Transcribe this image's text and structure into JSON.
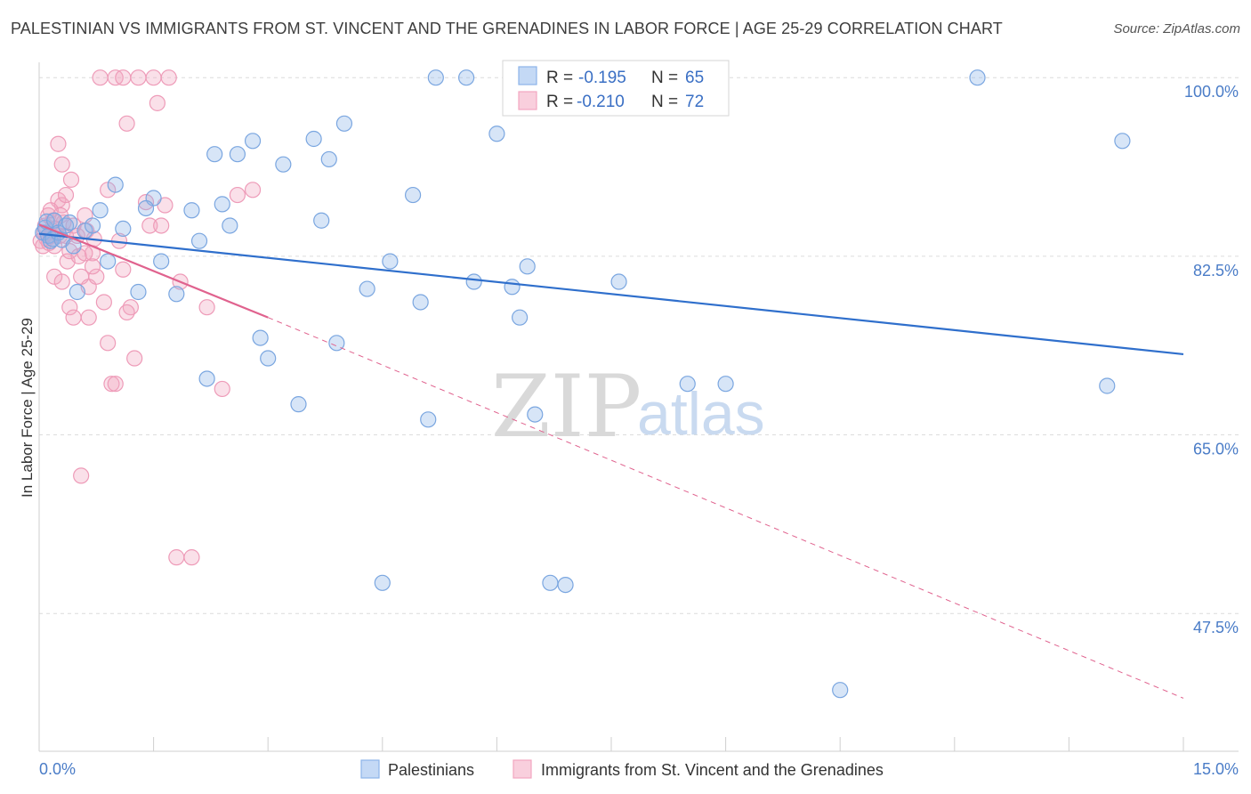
{
  "header": {
    "title": "PALESTINIAN VS IMMIGRANTS FROM ST. VINCENT AND THE GRENADINES IN LABOR FORCE | AGE 25-29 CORRELATION CHART",
    "source": "Source: ZipAtlas.com"
  },
  "watermark": {
    "zip": "ZIP",
    "atlas": "atlas"
  },
  "stats": [
    {
      "r_label": "R =",
      "r_value": "-0.195",
      "n_label": "N =",
      "n_value": "65"
    },
    {
      "r_label": "R =",
      "r_value": "-0.210",
      "n_label": "N =",
      "n_value": "72"
    }
  ],
  "legend": [
    {
      "label": "Palestinians"
    },
    {
      "label": "Immigrants from St. Vincent and the Grenadines"
    }
  ],
  "chart_data": {
    "type": "scatter",
    "title": "PALESTINIAN VS IMMIGRANTS FROM ST. VINCENT AND THE GRENADINES IN LABOR FORCE | AGE 25-29 CORRELATION CHART",
    "xlabel": "",
    "ylabel": "In Labor Force | Age 25-29",
    "xlim": [
      0,
      15
    ],
    "ylim": [
      34,
      101.5
    ],
    "x_ticks": [
      0,
      1.5,
      3,
      4.5,
      6,
      7.5,
      9,
      10.5,
      12,
      13.5,
      15
    ],
    "x_tick_labels": {
      "0": "0.0%",
      "15": "15.0%"
    },
    "y_ticks": [
      100,
      82.5,
      65,
      47.5
    ],
    "y_tick_labels": [
      "100.0%",
      "82.5%",
      "65.0%",
      "47.5%"
    ],
    "grid": true,
    "colors": {
      "blue": "#8db4e8",
      "blue_line": "#2f6fcc",
      "pink": "#f2a7c0",
      "pink_line": "#e0628e"
    },
    "series": [
      {
        "name": "Palestinians",
        "color": "#8db4e8",
        "x": [
          0.05,
          0.08,
          0.1,
          0.12,
          0.15,
          0.18,
          0.2,
          0.25,
          0.3,
          0.35,
          0.4,
          0.45,
          0.5,
          0.6,
          0.7,
          0.8,
          0.9,
          1.0,
          1.1,
          1.3,
          1.5,
          1.6,
          1.8,
          2.0,
          2.1,
          2.2,
          2.3,
          2.5,
          2.6,
          2.8,
          2.9,
          3.0,
          3.2,
          3.4,
          3.6,
          3.8,
          3.9,
          4.0,
          4.3,
          4.5,
          4.6,
          5.0,
          5.1,
          5.2,
          5.6,
          5.7,
          6.0,
          6.2,
          6.3,
          6.4,
          6.5,
          6.7,
          6.9,
          7.2,
          7.6,
          8.5,
          9.0,
          10.5,
          12.3,
          14.0,
          14.2,
          4.9,
          3.7,
          2.4,
          1.4
        ],
        "y": [
          84.8,
          85.3,
          85.9,
          84.5,
          84.0,
          84.2,
          86.0,
          84.8,
          84.1,
          85.5,
          85.8,
          83.5,
          79.0,
          85.0,
          85.5,
          87.0,
          82.0,
          89.5,
          85.2,
          79.0,
          88.2,
          82.0,
          78.8,
          87.0,
          84.0,
          70.5,
          92.5,
          85.5,
          92.5,
          93.8,
          74.5,
          72.5,
          91.5,
          68.0,
          94.0,
          92.0,
          74.0,
          95.5,
          79.3,
          50.5,
          82.0,
          78.0,
          66.5,
          100.0,
          100.0,
          80.0,
          94.5,
          79.5,
          76.5,
          81.5,
          67.0,
          50.5,
          50.3,
          100.0,
          80.0,
          70.0,
          70.0,
          40.0,
          100.0,
          69.8,
          93.8,
          88.5,
          86.0,
          87.6,
          87.2
        ]
      },
      {
        "name": "Immigrants from St. Vincent and the Grenadines",
        "color": "#f2a7c0",
        "x": [
          0.02,
          0.05,
          0.07,
          0.08,
          0.1,
          0.12,
          0.13,
          0.15,
          0.17,
          0.18,
          0.2,
          0.22,
          0.25,
          0.27,
          0.3,
          0.32,
          0.35,
          0.37,
          0.4,
          0.42,
          0.45,
          0.5,
          0.52,
          0.55,
          0.6,
          0.62,
          0.65,
          0.7,
          0.72,
          0.75,
          0.8,
          0.85,
          0.9,
          0.95,
          1.0,
          1.05,
          1.1,
          1.15,
          1.2,
          1.25,
          1.3,
          1.4,
          1.45,
          1.5,
          1.55,
          1.6,
          1.65,
          1.7,
          1.8,
          1.85,
          2.0,
          2.2,
          2.4,
          2.6,
          2.8,
          0.25,
          0.3,
          0.35,
          0.4,
          0.45,
          0.6,
          0.7,
          0.9,
          1.0,
          1.1,
          1.15,
          0.55,
          0.65,
          0.2,
          0.15,
          0.3,
          0.28
        ],
        "y": [
          84.0,
          83.5,
          84.8,
          85.5,
          84.2,
          86.5,
          83.8,
          84.5,
          85.0,
          86.0,
          83.5,
          85.2,
          88.0,
          84.5,
          87.5,
          85.8,
          84.5,
          82.0,
          83.0,
          90.0,
          85.5,
          84.5,
          82.5,
          80.5,
          86.5,
          85.0,
          79.5,
          82.8,
          84.2,
          80.5,
          100.0,
          78.0,
          74.0,
          70.0,
          100.0,
          84.0,
          100.0,
          95.5,
          77.5,
          72.5,
          100.0,
          87.8,
          85.5,
          100.0,
          97.5,
          85.5,
          87.5,
          100.0,
          53.0,
          80.0,
          53.0,
          77.5,
          69.5,
          88.5,
          89.0,
          93.5,
          91.5,
          88.5,
          77.5,
          76.5,
          82.8,
          81.5,
          89.0,
          70.0,
          81.2,
          77.0,
          61.0,
          76.5,
          80.5,
          87.0,
          80.0,
          86.5
        ]
      }
    ],
    "trend_lines": [
      {
        "series": "Palestinians",
        "x": [
          0,
          15
        ],
        "y": [
          84.7,
          72.9
        ],
        "style": "solid"
      },
      {
        "series": "Immigrants from St. Vincent and the Grenadines",
        "x": [
          0,
          3
        ],
        "y": [
          85.6,
          76.5
        ],
        "style": "solid"
      },
      {
        "series": "Immigrants from St. Vincent and the Grenadines",
        "x": [
          3,
          15
        ],
        "y": [
          76.5,
          39.2
        ],
        "style": "dashed"
      }
    ]
  }
}
